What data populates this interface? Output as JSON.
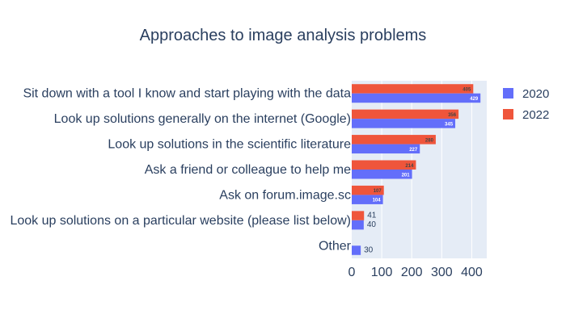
{
  "chart_data": {
    "type": "bar",
    "orientation": "horizontal",
    "title": "Approaches to image analysis problems",
    "xlabel": "",
    "ylabel": "",
    "categories": [
      "Sit down with a tool I know and start playing with the data",
      "Look up solutions generally on the internet (Google)",
      "Look up solutions in the scientific literature",
      "Ask a friend or colleague to help me",
      "Ask on forum.image.sc",
      "Look up solutions on a particular website (please list below)",
      "Other"
    ],
    "series": [
      {
        "name": "2020",
        "color": "#636efa",
        "values": [
          429,
          345,
          227,
          201,
          104,
          40,
          30
        ]
      },
      {
        "name": "2022",
        "color": "#ef553b",
        "values": [
          405,
          356,
          280,
          214,
          107,
          41,
          null
        ]
      }
    ],
    "xlim": [
      0,
      450
    ],
    "xticks": [
      0,
      100,
      200,
      300,
      400
    ],
    "grid": true,
    "legend_position": "top-right",
    "plot_background": "#e5ecf6"
  }
}
